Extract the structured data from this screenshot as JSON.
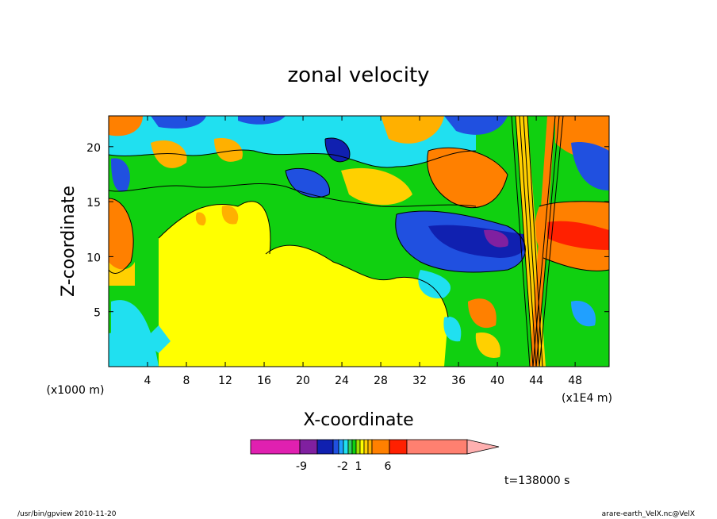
{
  "chart_data": {
    "type": "heatmap",
    "title": "zonal velocity",
    "xlabel": "X-coordinate",
    "ylabel": "Z-coordinate",
    "x_unit": "(x1E4 m)",
    "y_unit": "(x1000 m)",
    "xlim": [
      0,
      51.5
    ],
    "ylim": [
      0,
      22.8
    ],
    "x_ticks": [
      4,
      8,
      12,
      16,
      20,
      24,
      28,
      32,
      36,
      40,
      44,
      48
    ],
    "y_ticks": [
      5,
      10,
      15,
      20
    ],
    "colorbar": {
      "levels": [
        -9,
        -2,
        1,
        6
      ],
      "level_labels": [
        "-9",
        "-2",
        "1",
        "6"
      ],
      "colors": [
        "#e020b0",
        "#8020a0",
        "#1020b0",
        "#2050e0",
        "#20a0ff",
        "#20e0f0",
        "#30d060",
        "#10d010",
        "#a0e000",
        "#ffff00",
        "#ffd000",
        "#ffb000",
        "#ff8000",
        "#ff2000",
        "#ff8070"
      ]
    },
    "series": [
      {
        "name": "",
        "description_values": []
      }
    ],
    "annotation": "t=138000 s"
  },
  "footer": {
    "left": "/usr/bin/gpview   2010-11-20",
    "right": "arare-earth_VelX.nc@VelX"
  }
}
